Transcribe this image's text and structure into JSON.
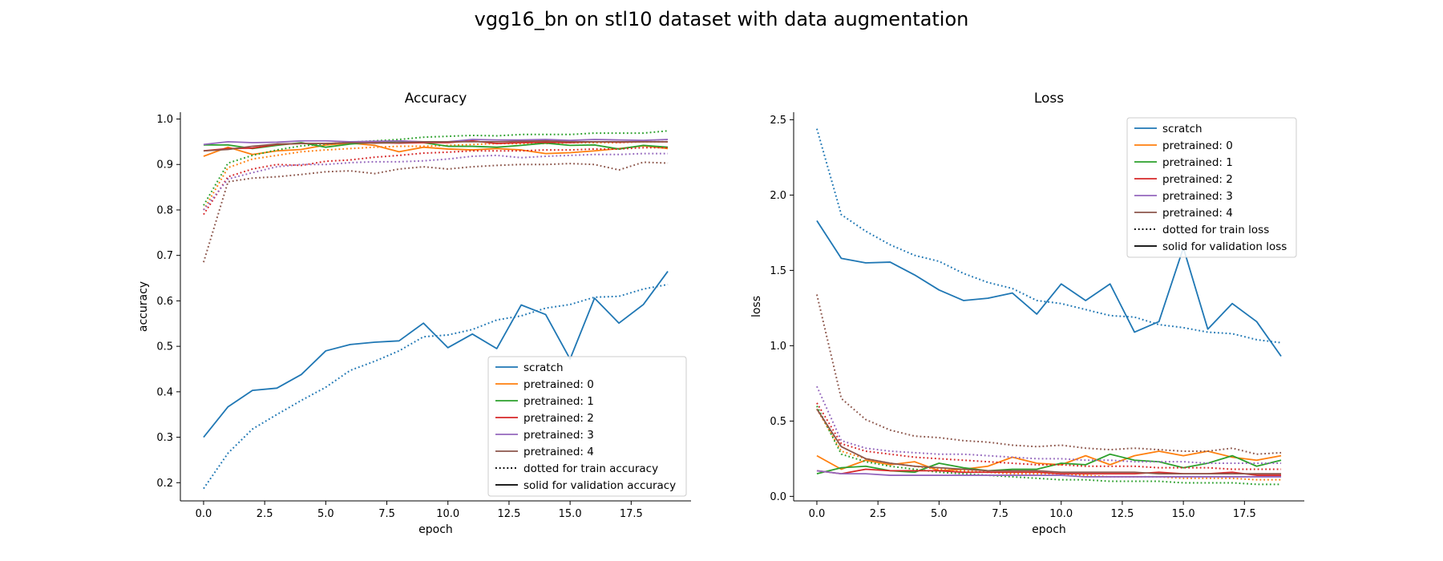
{
  "figure": {
    "title": "vgg16_bn on stl10 dataset with data augmentation"
  },
  "colors": {
    "scratch": "#1f77b4",
    "pretrained_0": "#ff7f0e",
    "pretrained_1": "#2ca02c",
    "pretrained_2": "#d62728",
    "pretrained_3": "#9467bd",
    "pretrained_4": "#8c564b"
  },
  "chart_data": [
    {
      "type": "line",
      "title": "Accuracy",
      "xlabel": "epoch",
      "ylabel": "accuracy",
      "xlim": [
        -0.95,
        19.95
      ],
      "ylim": [
        0.16,
        1.015
      ],
      "xticks": [
        0.0,
        2.5,
        5.0,
        7.5,
        10.0,
        12.5,
        15.0,
        17.5
      ],
      "xtick_labels": [
        "0.0",
        "2.5",
        "5.0",
        "7.5",
        "10.0",
        "12.5",
        "15.0",
        "17.5"
      ],
      "yticks": [
        0.2,
        0.3,
        0.4,
        0.5,
        0.6,
        0.7,
        0.8,
        0.9,
        1.0
      ],
      "ytick_labels": [
        "0.2",
        "0.3",
        "0.4",
        "0.5",
        "0.6",
        "0.7",
        "0.8",
        "0.9",
        "1.0"
      ],
      "legend_position": "lower-right",
      "grid": false,
      "legend": [
        "scratch",
        "pretrained: 0",
        "pretrained: 1",
        "pretrained: 2",
        "pretrained: 3",
        "pretrained: 4",
        "dotted for train accuracy",
        "solid for validation accuracy"
      ],
      "series": [
        {
          "name": "scratch",
          "color": "#1f77b4",
          "style": "solid",
          "y": [
            0.3,
            0.367,
            0.403,
            0.408,
            0.438,
            0.49,
            0.504,
            0.509,
            0.512,
            0.551,
            0.497,
            0.527,
            0.495,
            0.591,
            0.57,
            0.472,
            0.606,
            0.551,
            0.592,
            0.665
          ]
        },
        {
          "name": "scratch",
          "color": "#1f77b4",
          "style": "dotted",
          "y": [
            0.187,
            0.265,
            0.318,
            0.35,
            0.381,
            0.41,
            0.447,
            0.467,
            0.49,
            0.521,
            0.525,
            0.537,
            0.558,
            0.567,
            0.584,
            0.592,
            0.608,
            0.61,
            0.626,
            0.636
          ]
        },
        {
          "name": "pretrained: 0",
          "color": "#ff7f0e",
          "style": "solid",
          "y": [
            0.918,
            0.938,
            0.922,
            0.93,
            0.933,
            0.943,
            0.947,
            0.942,
            0.928,
            0.938,
            0.934,
            0.932,
            0.935,
            0.932,
            0.924,
            0.926,
            0.93,
            0.935,
            0.941,
            0.935
          ]
        },
        {
          "name": "pretrained: 0",
          "color": "#ff7f0e",
          "style": "dotted",
          "y": [
            0.8,
            0.893,
            0.912,
            0.92,
            0.928,
            0.932,
            0.935,
            0.938,
            0.94,
            0.94,
            0.942,
            0.944,
            0.946,
            0.946,
            0.946,
            0.948,
            0.948,
            0.948,
            0.95,
            0.95
          ]
        },
        {
          "name": "pretrained: 1",
          "color": "#2ca02c",
          "style": "solid",
          "y": [
            0.943,
            0.943,
            0.935,
            0.942,
            0.948,
            0.938,
            0.945,
            0.949,
            0.951,
            0.948,
            0.94,
            0.94,
            0.938,
            0.942,
            0.947,
            0.942,
            0.943,
            0.934,
            0.942,
            0.938
          ]
        },
        {
          "name": "pretrained: 1",
          "color": "#2ca02c",
          "style": "dotted",
          "y": [
            0.81,
            0.903,
            0.92,
            0.932,
            0.941,
            0.945,
            0.949,
            0.952,
            0.955,
            0.96,
            0.962,
            0.964,
            0.963,
            0.966,
            0.966,
            0.966,
            0.969,
            0.969,
            0.969,
            0.974
          ]
        },
        {
          "name": "pretrained: 2",
          "color": "#d62728",
          "style": "solid",
          "y": [
            0.93,
            0.935,
            0.936,
            0.944,
            0.946,
            0.946,
            0.948,
            0.948,
            0.947,
            0.948,
            0.948,
            0.952,
            0.946,
            0.948,
            0.949,
            0.948,
            0.95,
            0.949,
            0.95,
            0.95
          ]
        },
        {
          "name": "pretrained: 2",
          "color": "#d62728",
          "style": "dotted",
          "y": [
            0.79,
            0.873,
            0.89,
            0.9,
            0.898,
            0.907,
            0.91,
            0.916,
            0.92,
            0.925,
            0.927,
            0.93,
            0.93,
            0.93,
            0.932,
            0.932,
            0.934,
            0.934,
            0.937,
            0.937
          ]
        },
        {
          "name": "pretrained: 3",
          "color": "#9467bd",
          "style": "solid",
          "y": [
            0.944,
            0.95,
            0.948,
            0.949,
            0.952,
            0.952,
            0.95,
            0.951,
            0.952,
            0.95,
            0.95,
            0.955,
            0.954,
            0.954,
            0.955,
            0.953,
            0.955,
            0.954,
            0.953,
            0.955
          ]
        },
        {
          "name": "pretrained: 3",
          "color": "#9467bd",
          "style": "dotted",
          "y": [
            0.8,
            0.868,
            0.882,
            0.895,
            0.9,
            0.9,
            0.904,
            0.906,
            0.906,
            0.908,
            0.912,
            0.918,
            0.92,
            0.915,
            0.918,
            0.92,
            0.922,
            0.922,
            0.924,
            0.924
          ]
        },
        {
          "name": "pretrained: 4",
          "color": "#8c564b",
          "style": "solid",
          "y": [
            0.93,
            0.933,
            0.94,
            0.945,
            0.946,
            0.946,
            0.948,
            0.947,
            0.948,
            0.95,
            0.95,
            0.95,
            0.95,
            0.951,
            0.952,
            0.95,
            0.95,
            0.95,
            0.95,
            0.95
          ]
        },
        {
          "name": "pretrained: 4",
          "color": "#8c564b",
          "style": "dotted",
          "y": [
            0.685,
            0.862,
            0.87,
            0.873,
            0.878,
            0.884,
            0.886,
            0.88,
            0.89,
            0.895,
            0.89,
            0.895,
            0.898,
            0.9,
            0.9,
            0.902,
            0.9,
            0.888,
            0.905,
            0.903
          ]
        }
      ]
    },
    {
      "type": "line",
      "title": "Loss",
      "xlabel": "epoch",
      "ylabel": "loss",
      "xlim": [
        -0.95,
        19.95
      ],
      "ylim": [
        -0.03,
        2.55
      ],
      "xticks": [
        0.0,
        2.5,
        5.0,
        7.5,
        10.0,
        12.5,
        15.0,
        17.5
      ],
      "xtick_labels": [
        "0.0",
        "2.5",
        "5.0",
        "7.5",
        "10.0",
        "12.5",
        "15.0",
        "17.5"
      ],
      "yticks": [
        0.0,
        0.5,
        1.0,
        1.5,
        2.0,
        2.5
      ],
      "ytick_labels": [
        "0.0",
        "0.5",
        "1.0",
        "1.5",
        "2.0",
        "2.5"
      ],
      "legend_position": "upper-right",
      "grid": false,
      "legend": [
        "scratch",
        "pretrained: 0",
        "pretrained: 1",
        "pretrained: 2",
        "pretrained: 3",
        "pretrained: 4",
        "dotted for train loss",
        "solid for validation loss"
      ],
      "series": [
        {
          "name": "scratch",
          "color": "#1f77b4",
          "style": "solid",
          "y": [
            1.83,
            1.58,
            1.55,
            1.555,
            1.47,
            1.37,
            1.3,
            1.315,
            1.35,
            1.21,
            1.41,
            1.3,
            1.41,
            1.09,
            1.16,
            1.65,
            1.11,
            1.28,
            1.16,
            0.93
          ]
        },
        {
          "name": "scratch",
          "color": "#1f77b4",
          "style": "dotted",
          "y": [
            2.44,
            1.87,
            1.76,
            1.67,
            1.6,
            1.56,
            1.48,
            1.42,
            1.38,
            1.3,
            1.28,
            1.24,
            1.2,
            1.19,
            1.14,
            1.12,
            1.09,
            1.08,
            1.04,
            1.02
          ]
        },
        {
          "name": "pretrained: 0",
          "color": "#ff7f0e",
          "style": "solid",
          "y": [
            0.27,
            0.18,
            0.24,
            0.21,
            0.23,
            0.17,
            0.18,
            0.2,
            0.26,
            0.22,
            0.21,
            0.27,
            0.21,
            0.27,
            0.3,
            0.27,
            0.3,
            0.26,
            0.24,
            0.27
          ]
        },
        {
          "name": "pretrained: 0",
          "color": "#ff7f0e",
          "style": "dotted",
          "y": [
            0.58,
            0.3,
            0.25,
            0.22,
            0.2,
            0.18,
            0.17,
            0.16,
            0.15,
            0.15,
            0.14,
            0.14,
            0.13,
            0.13,
            0.13,
            0.12,
            0.12,
            0.12,
            0.11,
            0.11
          ]
        },
        {
          "name": "pretrained: 1",
          "color": "#2ca02c",
          "style": "solid",
          "y": [
            0.15,
            0.19,
            0.2,
            0.17,
            0.16,
            0.22,
            0.19,
            0.17,
            0.18,
            0.18,
            0.22,
            0.21,
            0.28,
            0.24,
            0.23,
            0.19,
            0.22,
            0.27,
            0.2,
            0.24
          ]
        },
        {
          "name": "pretrained: 1",
          "color": "#2ca02c",
          "style": "dotted",
          "y": [
            0.6,
            0.28,
            0.23,
            0.2,
            0.18,
            0.16,
            0.15,
            0.14,
            0.13,
            0.12,
            0.11,
            0.11,
            0.1,
            0.1,
            0.1,
            0.09,
            0.09,
            0.09,
            0.08,
            0.08
          ]
        },
        {
          "name": "pretrained: 2",
          "color": "#d62728",
          "style": "solid",
          "y": [
            0.17,
            0.15,
            0.18,
            0.17,
            0.17,
            0.17,
            0.16,
            0.16,
            0.16,
            0.16,
            0.15,
            0.15,
            0.15,
            0.15,
            0.16,
            0.15,
            0.15,
            0.16,
            0.14,
            0.14
          ]
        },
        {
          "name": "pretrained: 2",
          "color": "#d62728",
          "style": "dotted",
          "y": [
            0.62,
            0.35,
            0.3,
            0.28,
            0.26,
            0.25,
            0.24,
            0.23,
            0.22,
            0.21,
            0.21,
            0.2,
            0.2,
            0.2,
            0.19,
            0.19,
            0.19,
            0.18,
            0.18,
            0.18
          ]
        },
        {
          "name": "pretrained: 3",
          "color": "#9467bd",
          "style": "solid",
          "y": [
            0.17,
            0.15,
            0.15,
            0.14,
            0.14,
            0.14,
            0.14,
            0.14,
            0.14,
            0.14,
            0.14,
            0.13,
            0.13,
            0.13,
            0.13,
            0.13,
            0.13,
            0.13,
            0.13,
            0.13
          ]
        },
        {
          "name": "pretrained: 3",
          "color": "#9467bd",
          "style": "dotted",
          "y": [
            0.73,
            0.37,
            0.32,
            0.3,
            0.29,
            0.28,
            0.28,
            0.27,
            0.26,
            0.25,
            0.25,
            0.24,
            0.24,
            0.23,
            0.23,
            0.23,
            0.22,
            0.22,
            0.22,
            0.22
          ]
        },
        {
          "name": "pretrained: 4",
          "color": "#8c564b",
          "style": "solid",
          "y": [
            0.58,
            0.33,
            0.25,
            0.22,
            0.2,
            0.19,
            0.18,
            0.17,
            0.17,
            0.17,
            0.16,
            0.16,
            0.16,
            0.16,
            0.15,
            0.15,
            0.15,
            0.15,
            0.15,
            0.15
          ]
        },
        {
          "name": "pretrained: 4",
          "color": "#8c564b",
          "style": "dotted",
          "y": [
            1.34,
            0.65,
            0.51,
            0.44,
            0.4,
            0.39,
            0.37,
            0.36,
            0.34,
            0.33,
            0.34,
            0.32,
            0.31,
            0.32,
            0.31,
            0.3,
            0.3,
            0.32,
            0.28,
            0.29
          ]
        }
      ]
    }
  ]
}
